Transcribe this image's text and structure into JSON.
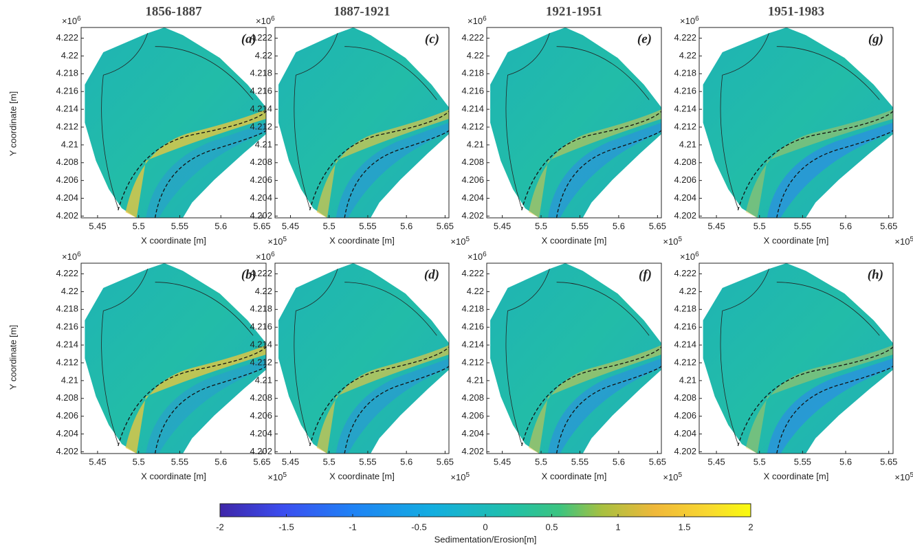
{
  "column_titles": [
    "1856-1887",
    "1887-1921",
    "1921-1951",
    "1951-1983"
  ],
  "panels": [
    [
      "(a)",
      "(c)",
      "(e)",
      "(g)"
    ],
    [
      "(b)",
      "(d)",
      "(f)",
      "(h)"
    ]
  ],
  "x_axis": {
    "label": "X coordinate [m]",
    "multiplier": "×10",
    "power": "5",
    "lim": [
      5.43,
      5.655
    ],
    "ticks": [
      5.45,
      5.5,
      5.55,
      5.6,
      5.65
    ]
  },
  "y_axis": {
    "label": "Y coordinate [m]",
    "multiplier": "×10",
    "power": "6",
    "lim": [
      4.2018,
      4.2232
    ],
    "ticks": [
      4.202,
      4.204,
      4.206,
      4.208,
      4.21,
      4.212,
      4.214,
      4.216,
      4.218,
      4.22,
      4.222
    ]
  },
  "colorbar": {
    "label": "Sedimentation/Erosion[m]",
    "lim": [
      -2,
      2
    ],
    "ticks": [
      -2,
      -1.5,
      -1,
      -0.5,
      0,
      0.5,
      1,
      1.5,
      2
    ]
  }
}
